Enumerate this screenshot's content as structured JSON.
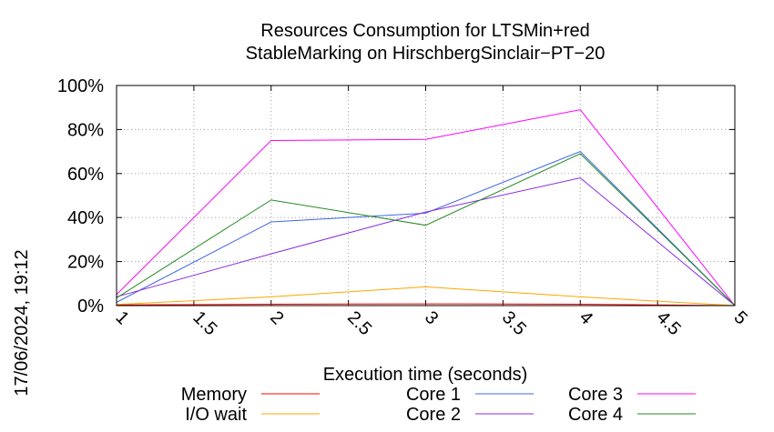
{
  "timestamp": "17/06/2024, 19:12",
  "chart_data": {
    "type": "line",
    "title_lines": [
      "Resources Consumption for LTSMin+red",
      "StableMarking on HirschbergSinclair−PT−20"
    ],
    "xlabel": "Execution time (seconds)",
    "ylabel": "",
    "xlim": [
      1,
      5
    ],
    "ylim": [
      0,
      100
    ],
    "x_ticks": [
      1,
      1.5,
      2,
      2.5,
      3,
      3.5,
      4,
      4.5,
      5
    ],
    "x_tick_labels": [
      "1",
      "1.5",
      "2",
      "2.5",
      "3",
      "3.5",
      "4",
      "4.5",
      "5"
    ],
    "y_ticks": [
      0,
      20,
      40,
      60,
      80,
      100
    ],
    "y_tick_labels": [
      "0%",
      "20%",
      "40%",
      "60%",
      "80%",
      "100%"
    ],
    "grid": true,
    "legend_position": "bottom",
    "x": [
      1,
      2,
      3,
      4,
      5
    ],
    "series": [
      {
        "name": "Memory",
        "color": "#ff0000",
        "values": [
          0.3,
          0.6,
          0.8,
          0.6,
          0
        ]
      },
      {
        "name": "I/O wait",
        "color": "#ffa500",
        "values": [
          0.5,
          4,
          8.5,
          4,
          0
        ]
      },
      {
        "name": "Core 1",
        "color": "#4169e1",
        "values": [
          1.5,
          38,
          42,
          70,
          0
        ]
      },
      {
        "name": "Core 2",
        "color": "#8a2be2",
        "values": [
          4,
          23.5,
          42.5,
          58,
          0
        ]
      },
      {
        "name": "Core 3",
        "color": "#ff00ff",
        "values": [
          5,
          75,
          75.5,
          89,
          0
        ]
      },
      {
        "name": "Core 4",
        "color": "#228b22",
        "values": [
          3.5,
          48,
          36.5,
          69,
          0
        ]
      }
    ]
  }
}
